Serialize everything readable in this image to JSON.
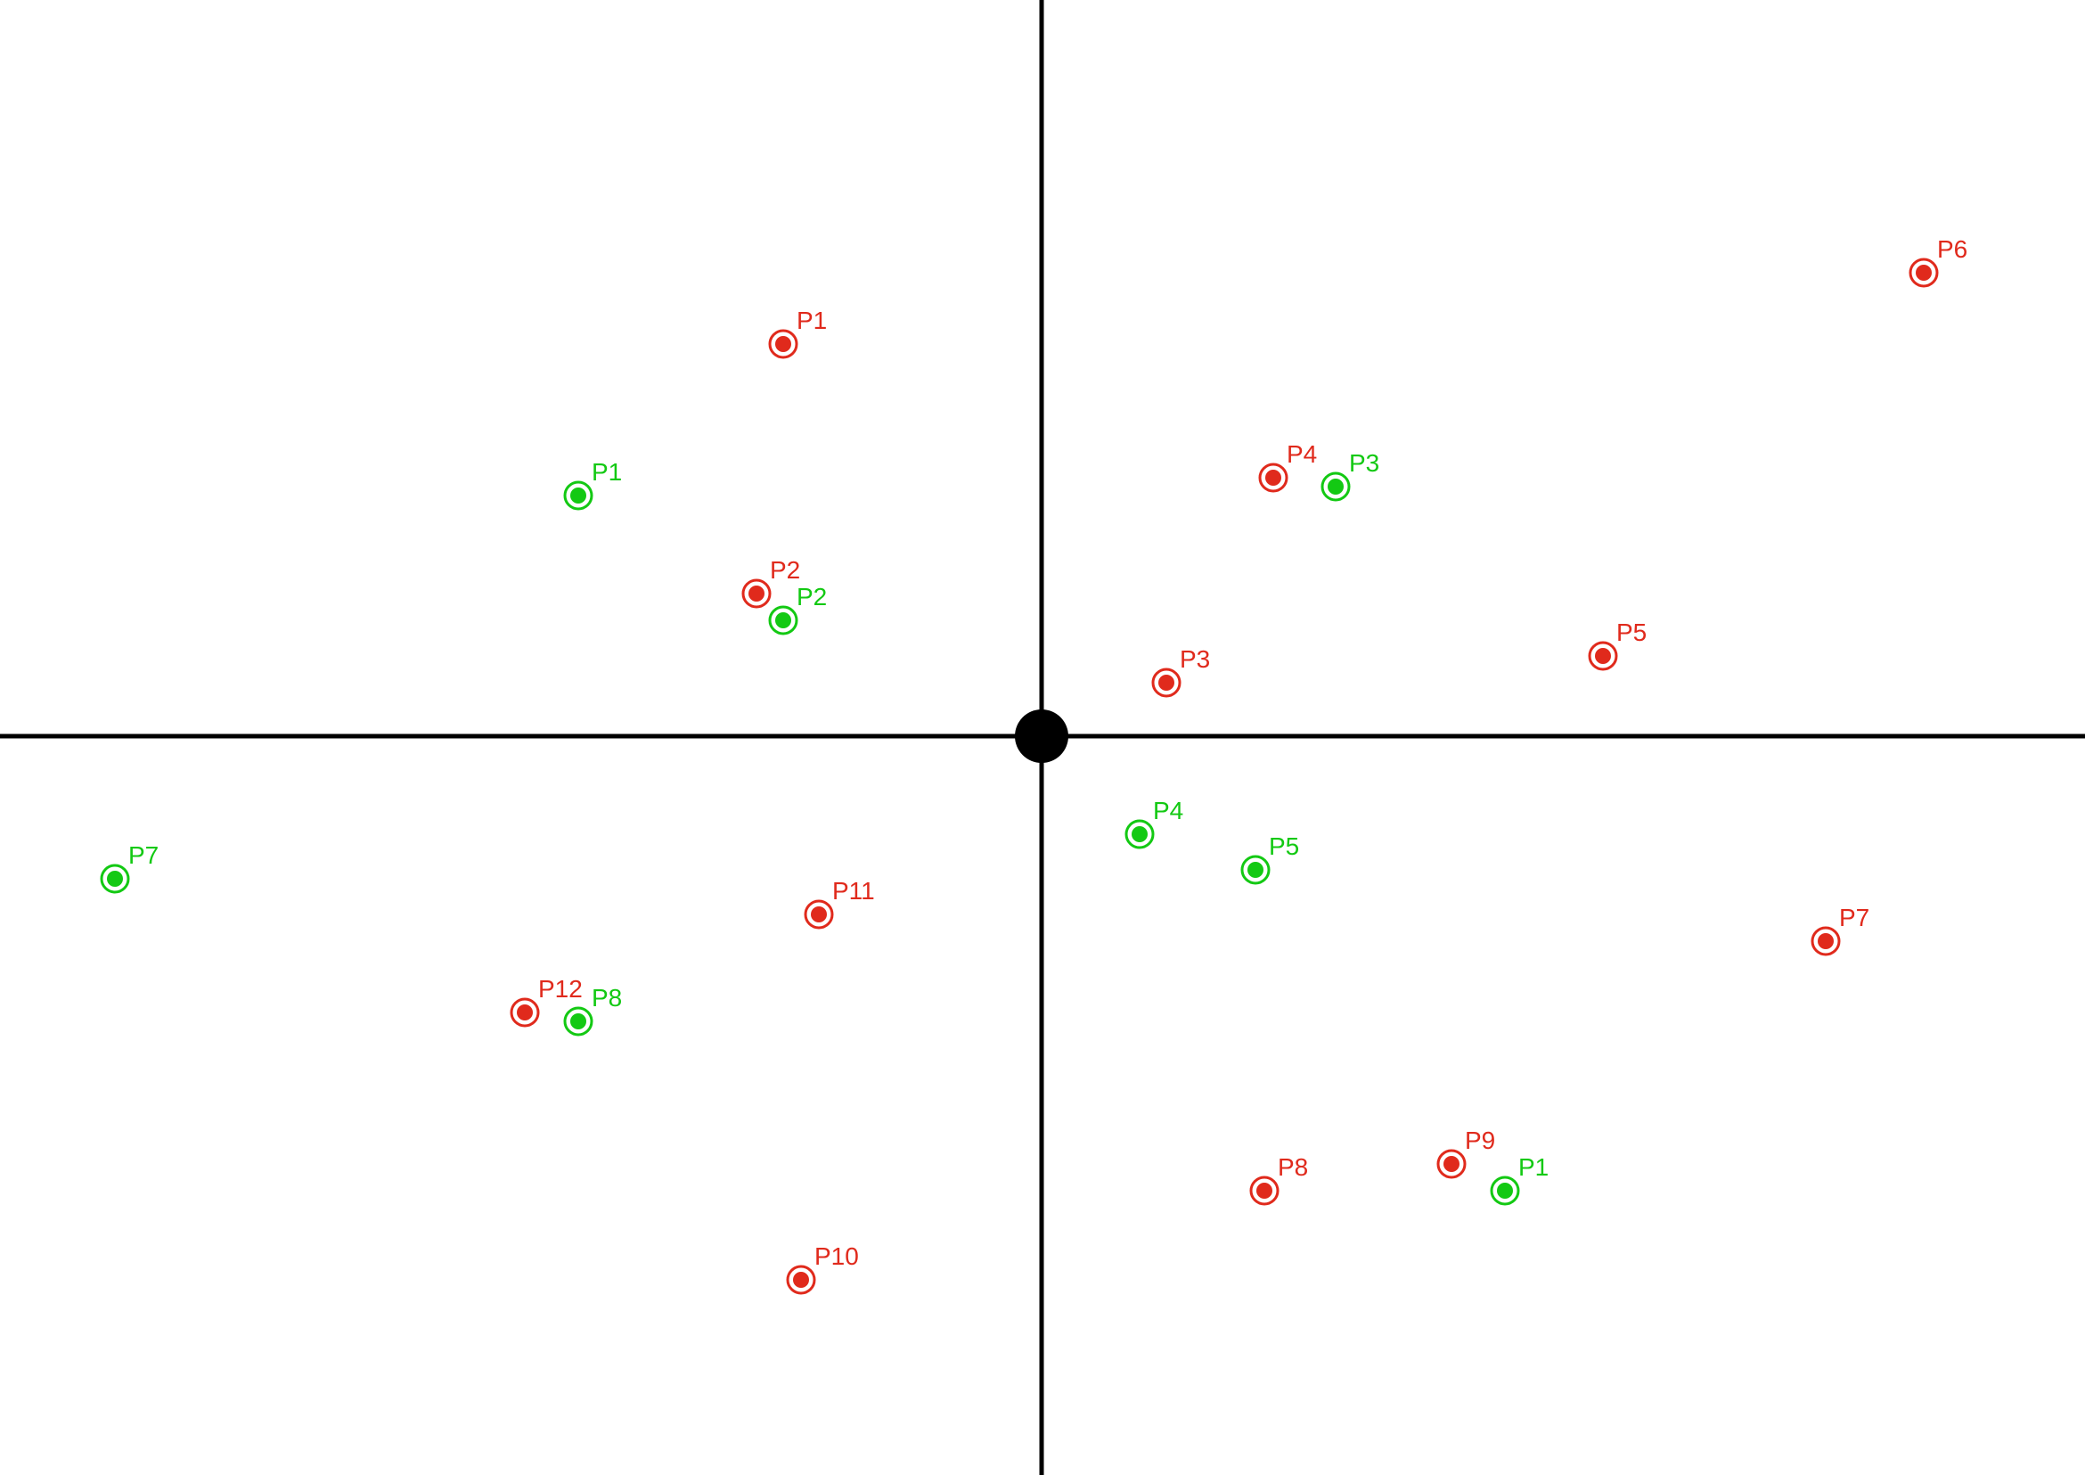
{
  "colors": {
    "red": "#e02a1c",
    "green": "#13c913",
    "axis": "#000000"
  },
  "points": [
    {
      "label": "P1",
      "color": "red",
      "x": -2.9,
      "y": 4.4
    },
    {
      "label": "P1",
      "color": "green",
      "x": -5.2,
      "y": 2.7
    },
    {
      "label": "P2",
      "color": "red",
      "x": -3.2,
      "y": 1.6
    },
    {
      "label": "P2",
      "color": "green",
      "x": -2.9,
      "y": 1.3
    },
    {
      "label": "P4",
      "color": "red",
      "x": 2.6,
      "y": 2.9
    },
    {
      "label": "P3",
      "color": "green",
      "x": 3.3,
      "y": 2.8
    },
    {
      "label": "P3",
      "color": "red",
      "x": 1.4,
      "y": 0.6
    },
    {
      "label": "P5",
      "color": "red",
      "x": 6.3,
      "y": 0.9
    },
    {
      "label": "P6",
      "color": "red",
      "x": 9.9,
      "y": 5.2
    },
    {
      "label": "P7",
      "color": "green",
      "x": -10.4,
      "y": -1.6
    },
    {
      "label": "P11",
      "color": "red",
      "x": -2.5,
      "y": -2.0
    },
    {
      "label": "P12",
      "color": "red",
      "x": -5.8,
      "y": -3.1
    },
    {
      "label": "P8",
      "color": "green",
      "x": -5.2,
      "y": -3.2
    },
    {
      "label": "P10",
      "color": "red",
      "x": -2.7,
      "y": -6.1
    },
    {
      "label": "P4",
      "color": "green",
      "x": 1.1,
      "y": -1.1
    },
    {
      "label": "P5",
      "color": "green",
      "x": 2.4,
      "y": -1.5
    },
    {
      "label": "P7",
      "color": "red",
      "x": 8.8,
      "y": -2.3
    },
    {
      "label": "P8",
      "color": "red",
      "x": 2.5,
      "y": -5.1
    },
    {
      "label": "P9",
      "color": "red",
      "x": 4.6,
      "y": -4.8
    },
    {
      "label": "P1",
      "color": "green",
      "x": 5.2,
      "y": -5.1
    }
  ]
}
